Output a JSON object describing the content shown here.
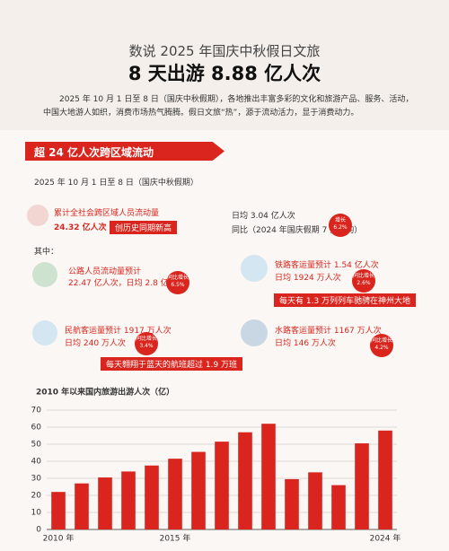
{
  "header": {
    "title": "数说 2025 年国庆中秋假日文旅",
    "subtitle": "8 天出游 8.88 亿人次",
    "intro": "2025 年 10 月 1 日至 8 日（国庆中秋假期），各地推出丰富多彩的文化和旅游产品、服务、活动，中国大地游人如织，消费市场热气腾腾。假日文旅“热”，源于流动活力，显于消费动力。"
  },
  "section": {
    "banner": "超 24 亿人次跨区域流动",
    "date": "2025 年 10 月 1 日至 8 日（国庆中秋假期）",
    "total": {
      "label": "累计全社会跨区域人员流动量",
      "value": "24.32 亿人次",
      "badge": "创历史同期新高",
      "daily": "日均 3.04 亿人次",
      "compare": "同比（2024 年国庆假期 7 天日均）",
      "change_label": "增长",
      "change": "6.2%"
    },
    "among": "其中：",
    "road": {
      "label": "公路人员流动量预计",
      "value": "22.47 亿人次，日均 2.8 亿人次",
      "change_label": "同比增长",
      "change": "6.5%"
    },
    "rail": {
      "label": "铁路客运量预计 1.54 亿人次",
      "value": "日均 1924 万人次",
      "change_label": "同比增长",
      "change": "2.6%",
      "banner": "每天有 1.3 万列列车驰骋在神州大地"
    },
    "air": {
      "label": "民航客运量预计 1917 万人次",
      "value": "日均 240 万人次",
      "change_label": "同比增长",
      "change": "3.4%",
      "banner": "每天翱翔于蓝天的航班超过 1.9 万班"
    },
    "water": {
      "label": "水路客运量预计 1167 万人次",
      "value": "日均 146 万人次",
      "change_label": "同比增长",
      "change": "4.2%"
    }
  },
  "chart_data": {
    "type": "bar",
    "title": "2010 年以来国内旅游出游人次（亿）",
    "categories": [
      "2010 年",
      null,
      null,
      null,
      null,
      "2015 年",
      null,
      null,
      null,
      null,
      null,
      null,
      null,
      null,
      "2024 年"
    ],
    "values": [
      22,
      27,
      30.5,
      34,
      37.5,
      41.5,
      45.5,
      51.5,
      57,
      62,
      29.5,
      33.5,
      26,
      50.5,
      58
    ],
    "color": "#d9251d",
    "ylim": [
      0,
      70
    ],
    "yticks": [
      0,
      10,
      20,
      30,
      40,
      50,
      60,
      70
    ],
    "grid": true
  }
}
